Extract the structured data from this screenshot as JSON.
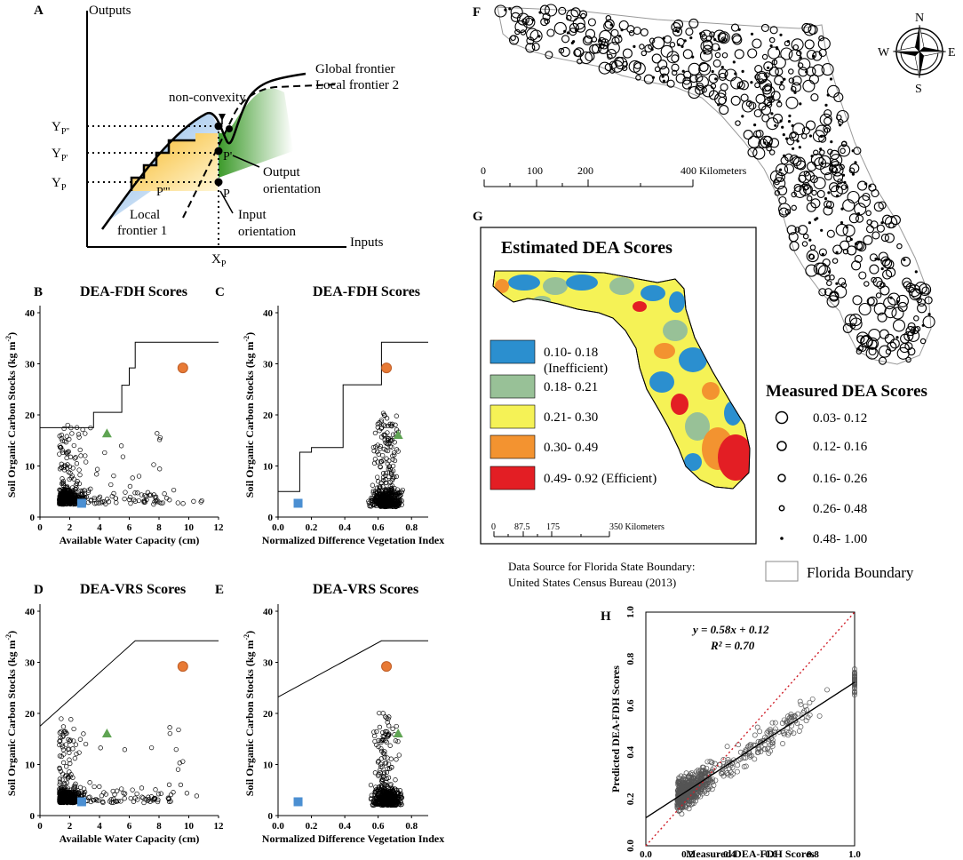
{
  "panel_letters": {
    "a": "A",
    "b": "B",
    "c": "C",
    "d": "D",
    "e": "E",
    "f": "F",
    "g": "G",
    "h": "H"
  },
  "panelA": {
    "y_axis": "Outputs",
    "x_axis": "Inputs",
    "global_frontier": "Global frontier",
    "local_frontier_2": "Local frontier 2",
    "local_frontier_1_line1": "Local",
    "local_frontier_1_line2": "frontier 1",
    "non_convexity": "non-convexity",
    "output_orientation_line1": "Output",
    "output_orientation_line2": "orientation",
    "input_orientation_line1": "Input",
    "input_orientation_line2": "orientation",
    "y_marks": [
      {
        "main": "Y",
        "sub": "P''"
      },
      {
        "main": "Y",
        "sub": "P'"
      },
      {
        "main": "Y",
        "sub": "P"
      }
    ],
    "x_mark": {
      "main": "X",
      "sub": "P"
    },
    "points": [
      "P'",
      "P",
      "P'''"
    ]
  },
  "chart_data": [
    {
      "panel": "B",
      "type": "scatter",
      "title": "DEA-FDH Scores",
      "xlabel": "Available Water Capacity (cm)",
      "ylabel_main": "Soil Organic Carbon Stocks  (kg m",
      "ylabel_sup": "-2",
      "ylabel_end": ")",
      "xlim": [
        0,
        12
      ],
      "ylim": [
        0,
        40
      ],
      "xticks": [
        0,
        2,
        4,
        6,
        8,
        10,
        12
      ],
      "yticks": [
        0,
        10,
        20,
        30,
        40
      ],
      "frontier": [
        [
          0,
          17.5
        ],
        [
          3.6,
          17.5
        ],
        [
          3.6,
          20.5
        ],
        [
          5.5,
          20.5
        ],
        [
          5.5,
          25.8
        ],
        [
          6.0,
          25.8
        ],
        [
          6.0,
          29.2
        ],
        [
          6.4,
          29.2
        ],
        [
          6.4,
          34.2
        ],
        [
          12,
          34.2
        ]
      ],
      "markers": {
        "orange": [
          9.6,
          29.2
        ],
        "green": [
          4.5,
          16.3
        ],
        "blue": [
          2.8,
          2.7
        ]
      }
    },
    {
      "panel": "C",
      "type": "scatter",
      "title": "DEA-FDH Scores",
      "xlabel": "Normalized Difference Vegetation Index",
      "ylabel_main": "Soil Organic Carbon Stocks  (kg m",
      "ylabel_sup": "-2",
      "ylabel_end": ")",
      "xlim": [
        0,
        0.9
      ],
      "ylim": [
        0,
        40
      ],
      "xticks": [
        0.0,
        0.2,
        0.4,
        0.6,
        0.8
      ],
      "yticks": [
        0,
        10,
        20,
        30,
        40
      ],
      "frontier": [
        [
          0,
          5.0
        ],
        [
          0.13,
          5.0
        ],
        [
          0.13,
          12.7
        ],
        [
          0.2,
          12.7
        ],
        [
          0.2,
          13.6
        ],
        [
          0.39,
          13.6
        ],
        [
          0.39,
          25.9
        ],
        [
          0.62,
          25.9
        ],
        [
          0.62,
          34.2
        ],
        [
          0.9,
          34.2
        ]
      ],
      "markers": {
        "orange": [
          0.65,
          29.2
        ],
        "green": [
          0.72,
          16.0
        ],
        "blue": [
          0.12,
          2.7
        ]
      }
    },
    {
      "panel": "D",
      "type": "scatter",
      "title": "DEA-VRS Scores",
      "xlabel": "Available Water Capacity (cm)",
      "ylabel_main": "Soil Organic Carbon Stocks  (kg m",
      "ylabel_sup": "-2",
      "ylabel_end": ")",
      "xlim": [
        0,
        12
      ],
      "ylim": [
        0,
        40
      ],
      "xticks": [
        0,
        2,
        4,
        6,
        8,
        10,
        12
      ],
      "yticks": [
        0,
        10,
        20,
        30,
        40
      ],
      "frontier": [
        [
          0,
          17.5
        ],
        [
          6.4,
          34.2
        ],
        [
          12,
          34.2
        ]
      ],
      "markers": {
        "orange": [
          9.6,
          29.2
        ],
        "green": [
          4.5,
          16.0
        ],
        "blue": [
          2.8,
          2.7
        ]
      }
    },
    {
      "panel": "E",
      "type": "scatter",
      "title": "DEA-VRS Scores",
      "xlabel": "Normalized Difference Vegetation Index",
      "ylabel_main": "Soil Organic Carbon Stocks  (kg m",
      "ylabel_sup": "-2",
      "ylabel_end": ")",
      "xlim": [
        0,
        0.9
      ],
      "ylim": [
        0,
        40
      ],
      "xticks": [
        0.0,
        0.2,
        0.4,
        0.6,
        0.8
      ],
      "yticks": [
        0,
        10,
        20,
        30,
        40
      ],
      "frontier": [
        [
          0,
          23.2
        ],
        [
          0.62,
          34.2
        ],
        [
          0.9,
          34.2
        ]
      ],
      "markers": {
        "orange": [
          0.65,
          29.2
        ],
        "green": [
          0.72,
          16.0
        ],
        "blue": [
          0.12,
          2.7
        ]
      }
    },
    {
      "panel": "H",
      "type": "scatter",
      "xlabel": "Measured DEA-FDH Scores",
      "ylabel": "Predicted DEA-FDH Scores",
      "xlim": [
        0,
        1
      ],
      "ylim": [
        0,
        1
      ],
      "xticks": [
        0.0,
        0.2,
        0.4,
        0.6,
        0.8,
        1.0
      ],
      "yticks": [
        0.0,
        0.2,
        0.4,
        0.6,
        0.8,
        1.0
      ],
      "equation": "y = 0.58x + 0.12",
      "r2": "R² = 0.70",
      "regression": {
        "slope": 0.58,
        "intercept": 0.12
      },
      "one_to_one_line": true
    }
  ],
  "panelF": {
    "compass": {
      "n": "N",
      "s": "S",
      "e": "E",
      "w": "W"
    },
    "scale_labels": [
      "0",
      "100",
      "200",
      "400 Kilometers"
    ],
    "legend_title": "Measured DEA Scores",
    "legend_items": [
      "0.03- 0.12",
      "0.12- 0.16",
      "0.16- 0.26",
      "0.26- 0.48",
      "0.48- 1.00"
    ],
    "boundary_label": "Florida Boundary"
  },
  "panelG": {
    "title": "Estimated DEA Scores",
    "legend": [
      {
        "label": "0.10- 0.18",
        "label2": "(Inefficient)",
        "color": "#2b8fcf"
      },
      {
        "label": "0.18- 0.21",
        "label2": "",
        "color": "#98c197"
      },
      {
        "label": "0.21- 0.30",
        "label2": "",
        "color": "#f5f256"
      },
      {
        "label": "0.30- 0.49",
        "label2": "",
        "color": "#f39330"
      },
      {
        "label": "0.49- 0.92 (Efficient)",
        "label2": "",
        "color": "#e31e24"
      }
    ],
    "scale_labels": [
      "0",
      "87.5",
      "175",
      "350 Kilometers"
    ],
    "source_line1": "Data Source for Florida State Boundary:",
    "source_line2": "United States Census Bureau (2013)"
  },
  "colors": {
    "orange": "#e87a35",
    "green": "#5fa453",
    "blue": "#4b8fd2",
    "local_fill": "#f7c63d",
    "blue_fill": "#9cc4e8",
    "green_fill": "#8cc66a"
  }
}
